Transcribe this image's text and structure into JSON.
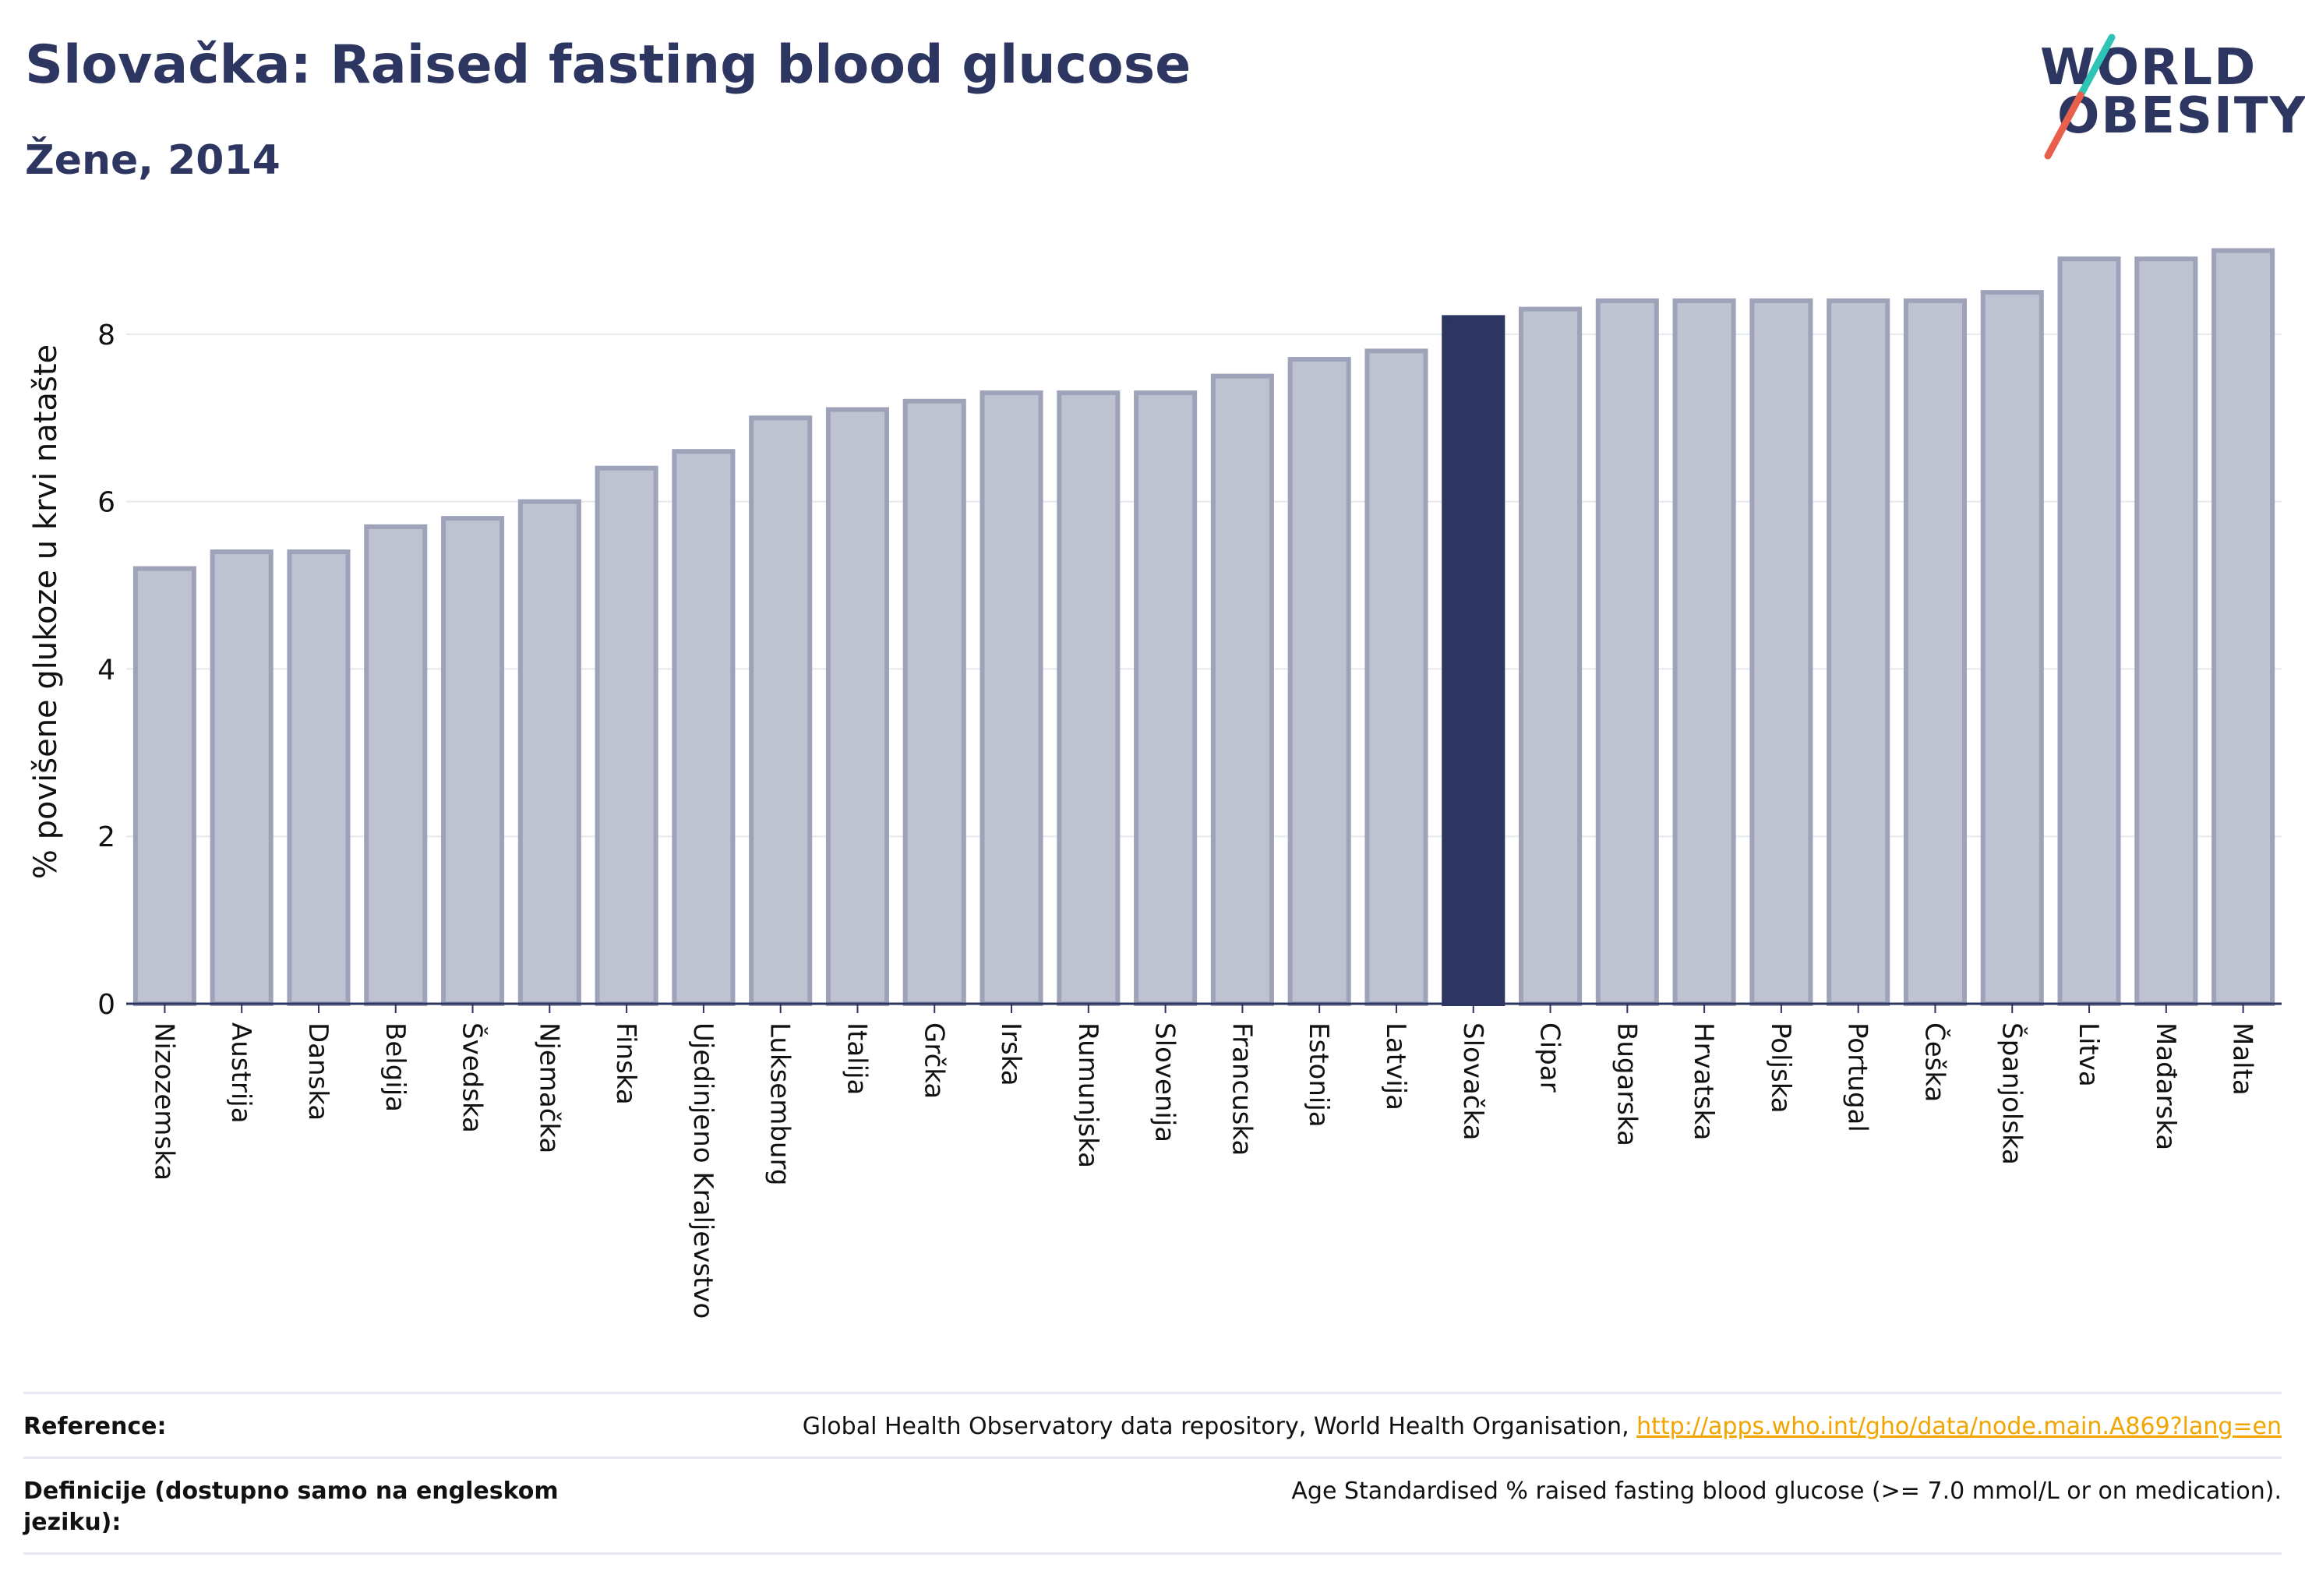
{
  "header": {
    "title": "Slovačka: Raised fasting blood glucose",
    "subtitle": "Žene, 2014"
  },
  "logo": {
    "line1": "WORLD",
    "line2": "OBESITY",
    "colors": {
      "text": "#2d3561",
      "slash_top": "#2ec4b6",
      "slash_bottom": "#e8604c"
    }
  },
  "colors": {
    "bar_default": "#bfc2d0",
    "bar_default_stroke": "#9ea3ba",
    "bar_highlight": "#2d3561",
    "axis": "#2d3561",
    "grid": "#e6e8ee"
  },
  "chart_data": {
    "type": "bar",
    "title": "Slovačka: Raised fasting blood glucose",
    "subtitle": "Žene, 2014",
    "xlabel": "",
    "ylabel": "% povišene glukoze u krvi natašte",
    "ylim": [
      0,
      9.2
    ],
    "yticks": [
      0,
      2,
      4,
      6,
      8
    ],
    "grid": true,
    "highlight": "Slovačka",
    "categories": [
      "Nizozemska",
      "Austrija",
      "Danska",
      "Belgija",
      "Švedska",
      "Njemačka",
      "Finska",
      "Ujedinjeno Kraljevstvo",
      "Luksemburg",
      "Italija",
      "Grčka",
      "Irska",
      "Rumunjska",
      "Slovenija",
      "Francuska",
      "Estonija",
      "Latvija",
      "Slovačka",
      "Cipar",
      "Bugarska",
      "Hrvatska",
      "Poljska",
      "Portugal",
      "Češka",
      "Španjolska",
      "Litva",
      "Mađarska",
      "Malta"
    ],
    "values": [
      5.2,
      5.4,
      5.4,
      5.7,
      5.8,
      6.0,
      6.4,
      6.6,
      7.0,
      7.1,
      7.2,
      7.3,
      7.3,
      7.3,
      7.5,
      7.7,
      7.8,
      8.2,
      8.3,
      8.4,
      8.4,
      8.4,
      8.4,
      8.4,
      8.5,
      8.9,
      8.9,
      9.0
    ]
  },
  "reference": {
    "label": "Reference:",
    "text": "Global Health Observatory data repository, World Health Organisation, ",
    "link": "http://apps.who.int/gho/data/node.main.A869?lang=en"
  },
  "definition": {
    "label": "Definicije (dostupno samo na engleskom jeziku):",
    "text": "Age Standardised % raised fasting blood glucose (>= 7.0 mmol/L or on medication)."
  }
}
